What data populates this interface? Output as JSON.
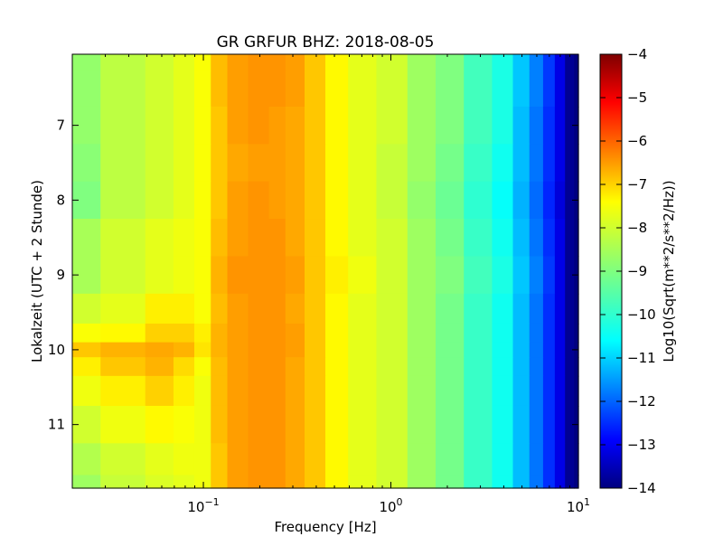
{
  "chart_data": {
    "type": "heatmap",
    "title": "GR GRFUR BHZ: 2018-08-05",
    "xlabel": "Frequency [Hz]",
    "ylabel": "Lokalzeit (UTC + 2 Stunde)",
    "colorbar_label": "Log10(Sqrt(m**2/s**2/Hz))",
    "x_scale": "log",
    "xlim": [
      0.02,
      10
    ],
    "ylim": [
      11.85,
      6.05
    ],
    "y_inverted": true,
    "x_ticks": [
      {
        "value": 0.1,
        "base": "10",
        "exp": "−1"
      },
      {
        "value": 1,
        "base": "10",
        "exp": "0"
      },
      {
        "value": 10,
        "base": "10",
        "exp": "1"
      }
    ],
    "y_ticks": [
      {
        "value": 7,
        "label": "7"
      },
      {
        "value": 8,
        "label": "8"
      },
      {
        "value": 9,
        "label": "9"
      },
      {
        "value": 10,
        "label": "10"
      },
      {
        "value": 11,
        "label": "11"
      }
    ],
    "colorbar_range": [
      -14,
      -4
    ],
    "colorbar_ticks": [
      "−4",
      "−5",
      "−6",
      "−7",
      "−8",
      "−9",
      "−10",
      "−11",
      "−12",
      "−13",
      "−14"
    ],
    "colormap": "jet",
    "frequencies_hz": [
      0.02,
      0.04,
      0.06,
      0.08,
      0.1,
      0.12,
      0.15,
      0.2,
      0.25,
      0.3,
      0.4,
      0.5,
      0.7,
      1.0,
      1.5,
      2.0,
      3.0,
      4.0,
      5.0,
      6.0,
      7.0,
      8.0,
      9.0,
      10.0
    ],
    "times_hour": [
      6.05,
      6.5,
      7.0,
      7.5,
      8.0,
      8.5,
      9.0,
      9.5,
      9.8,
      10.0,
      10.2,
      10.5,
      11.0,
      11.5,
      11.85
    ],
    "values_log10": [
      [
        -8.8,
        -8.4,
        -8.2,
        -8.0,
        -7.8,
        -7.1,
        -6.8,
        -6.7,
        -6.7,
        -6.8,
        -7.2,
        -7.7,
        -8.0,
        -8.2,
        -8.7,
        -9.0,
        -9.6,
        -10.0,
        -10.8,
        -11.5,
        -12.2,
        -13.0,
        -13.8,
        -14.0
      ],
      [
        -8.8,
        -8.4,
        -8.2,
        -8.0,
        -7.8,
        -7.1,
        -6.8,
        -6.7,
        -6.7,
        -6.8,
        -7.2,
        -7.7,
        -8.0,
        -8.2,
        -8.7,
        -9.0,
        -9.6,
        -10.0,
        -10.8,
        -11.5,
        -12.2,
        -13.0,
        -13.8,
        -14.0
      ],
      [
        -8.8,
        -8.4,
        -8.2,
        -8.0,
        -7.8,
        -7.2,
        -6.8,
        -6.7,
        -6.8,
        -6.9,
        -7.2,
        -7.7,
        -8.0,
        -8.2,
        -8.7,
        -9.0,
        -9.6,
        -10.0,
        -10.9,
        -11.6,
        -12.3,
        -13.0,
        -13.8,
        -14.0
      ],
      [
        -8.9,
        -8.4,
        -8.2,
        -8.0,
        -7.8,
        -7.2,
        -6.9,
        -6.8,
        -6.8,
        -6.9,
        -7.2,
        -7.7,
        -8.0,
        -8.3,
        -8.7,
        -9.1,
        -9.7,
        -10.1,
        -10.9,
        -11.6,
        -12.3,
        -13.0,
        -13.8,
        -14.0
      ],
      [
        -9.0,
        -8.4,
        -8.2,
        -8.0,
        -7.8,
        -7.2,
        -6.8,
        -6.7,
        -6.8,
        -6.9,
        -7.2,
        -7.7,
        -8.0,
        -8.3,
        -8.8,
        -9.2,
        -9.8,
        -10.2,
        -11.0,
        -11.7,
        -12.4,
        -13.1,
        -13.8,
        -14.0
      ],
      [
        -8.6,
        -8.2,
        -8.0,
        -7.9,
        -7.8,
        -7.1,
        -6.8,
        -6.7,
        -6.7,
        -6.9,
        -7.2,
        -7.7,
        -8.0,
        -8.2,
        -8.7,
        -9.1,
        -9.7,
        -10.1,
        -10.9,
        -11.6,
        -12.3,
        -13.0,
        -13.8,
        -14.0
      ],
      [
        -8.6,
        -8.2,
        -8.0,
        -7.9,
        -7.8,
        -7.0,
        -6.7,
        -6.7,
        -6.7,
        -6.8,
        -7.2,
        -7.6,
        -7.9,
        -8.2,
        -8.7,
        -9.0,
        -9.6,
        -10.0,
        -10.8,
        -11.5,
        -12.2,
        -13.0,
        -13.8,
        -14.0
      ],
      [
        -8.2,
        -8.0,
        -7.6,
        -7.6,
        -7.8,
        -7.1,
        -6.8,
        -6.7,
        -6.7,
        -6.9,
        -7.2,
        -7.7,
        -8.0,
        -8.2,
        -8.7,
        -9.1,
        -9.7,
        -10.1,
        -10.9,
        -11.6,
        -12.3,
        -13.0,
        -13.8,
        -14.0
      ],
      [
        -7.8,
        -7.7,
        -7.3,
        -7.3,
        -7.6,
        -7.0,
        -6.8,
        -6.7,
        -6.7,
        -6.8,
        -7.2,
        -7.7,
        -8.0,
        -8.2,
        -8.7,
        -9.1,
        -9.7,
        -10.1,
        -10.9,
        -11.6,
        -12.3,
        -13.0,
        -13.8,
        -14.0
      ],
      [
        -7.2,
        -7.0,
        -6.9,
        -7.0,
        -7.5,
        -7.0,
        -6.8,
        -6.7,
        -6.7,
        -6.8,
        -7.2,
        -7.7,
        -8.0,
        -8.2,
        -8.7,
        -9.1,
        -9.7,
        -10.1,
        -10.9,
        -11.6,
        -12.3,
        -13.0,
        -13.8,
        -14.0
      ],
      [
        -7.6,
        -7.2,
        -7.0,
        -7.4,
        -7.8,
        -7.1,
        -6.8,
        -6.7,
        -6.7,
        -6.9,
        -7.2,
        -7.7,
        -8.0,
        -8.2,
        -8.7,
        -9.1,
        -9.7,
        -10.1,
        -10.9,
        -11.6,
        -12.3,
        -13.0,
        -13.8,
        -14.0
      ],
      [
        -7.9,
        -7.6,
        -7.3,
        -7.6,
        -7.9,
        -7.1,
        -6.8,
        -6.7,
        -6.7,
        -6.9,
        -7.2,
        -7.7,
        -8.0,
        -8.2,
        -8.7,
        -9.1,
        -9.7,
        -10.1,
        -10.9,
        -11.6,
        -12.3,
        -13.0,
        -13.8,
        -14.0
      ],
      [
        -8.2,
        -7.9,
        -7.7,
        -7.8,
        -7.9,
        -7.1,
        -6.8,
        -6.7,
        -6.7,
        -6.9,
        -7.2,
        -7.7,
        -8.0,
        -8.2,
        -8.7,
        -9.1,
        -9.7,
        -10.1,
        -10.9,
        -11.6,
        -12.3,
        -13.0,
        -13.8,
        -14.0
      ],
      [
        -8.5,
        -8.2,
        -8.0,
        -7.9,
        -7.9,
        -7.2,
        -6.8,
        -6.7,
        -6.7,
        -6.9,
        -7.2,
        -7.7,
        -8.0,
        -8.2,
        -8.7,
        -9.1,
        -9.7,
        -10.1,
        -10.9,
        -11.6,
        -12.3,
        -13.0,
        -13.8,
        -14.0
      ],
      [
        -8.7,
        -8.3,
        -8.1,
        -8.0,
        -7.9,
        -7.2,
        -6.8,
        -6.7,
        -6.7,
        -6.9,
        -7.2,
        -7.7,
        -8.0,
        -8.2,
        -8.7,
        -9.1,
        -9.7,
        -10.1,
        -10.9,
        -11.6,
        -12.3,
        -13.0,
        -13.8,
        -14.0
      ]
    ]
  }
}
